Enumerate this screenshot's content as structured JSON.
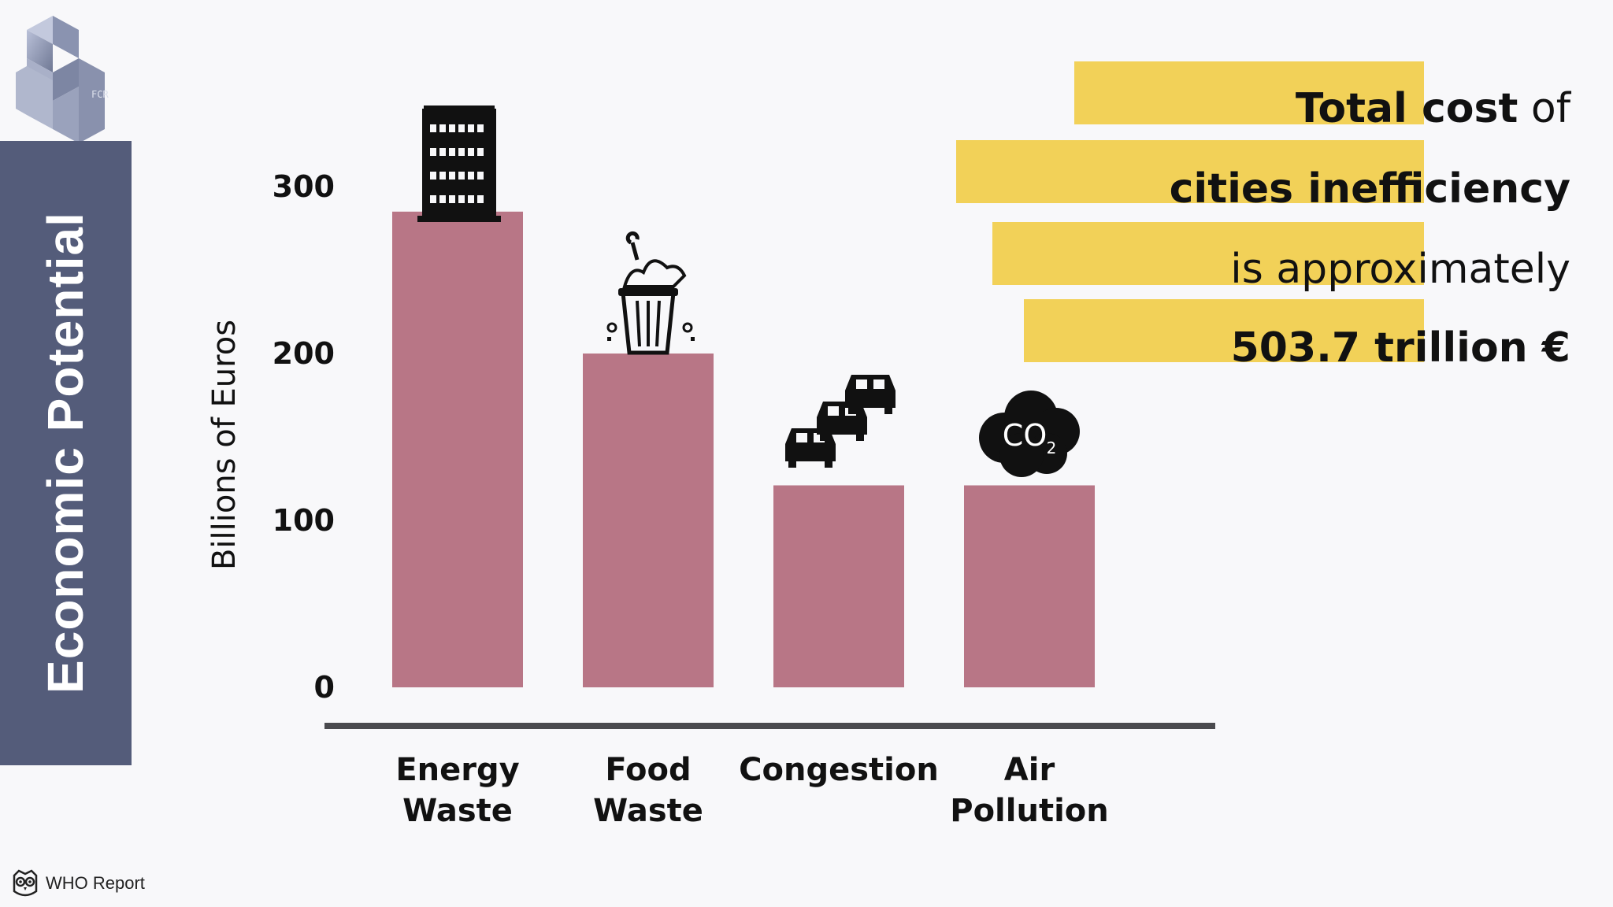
{
  "side_title": "Economic Potential",
  "logo": {
    "name": "cubes-logo",
    "letters": "FCR"
  },
  "callout": {
    "line1_bold": "Total cost",
    "line1_rest": " of",
    "line2": "cities inefficiency",
    "line3": "is approximately",
    "line4": "503.7 trillion €",
    "highlight_color": "#f2d158"
  },
  "footer": {
    "icon": "owl-icon",
    "label": "WHO Report"
  },
  "colors": {
    "bar": "#b87686",
    "axis": "#4a4a4e",
    "side_band": "#545c7a"
  },
  "chart_data": {
    "type": "bar",
    "categories": [
      [
        "Energy",
        "Waste"
      ],
      [
        "Food",
        "Waste"
      ],
      [
        "Congestion"
      ],
      [
        "Air",
        "Pollution"
      ]
    ],
    "values": [
      285,
      200,
      121,
      121
    ],
    "category_icons": [
      "office-building-icon",
      "trash-bin-icon",
      "cars-traffic-icon",
      "co2-cloud-icon"
    ],
    "ylabel": "Billions of Euros",
    "yticks": [
      0,
      100,
      200,
      300
    ],
    "ylim": [
      0,
      300
    ],
    "grid": false,
    "legend": "none"
  }
}
